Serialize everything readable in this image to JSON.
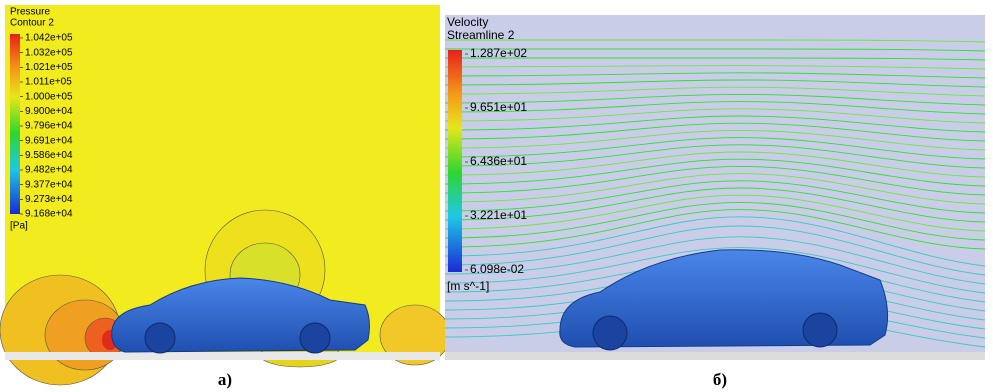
{
  "panels": [
    {
      "title": "Pressure",
      "subtitle": "Contour 2",
      "legend_labels": [
        "1.042e+05",
        "1.032e+05",
        "1.021e+05",
        "1.011e+05",
        "1.000e+05",
        "9.900e+04",
        "9.796e+04",
        "9.691e+04",
        "9.586e+04",
        "9.482e+04",
        "9.377e+04",
        "9.273e+04",
        "9.168e+04"
      ],
      "unit": "[Pa]",
      "caption": "а)"
    },
    {
      "title": "Velocity",
      "subtitle": "Streamline 2",
      "legend_labels": [
        "1.287e+02",
        "9.651e+01",
        "6.436e+01",
        "3.221e+01",
        "6.098e-02"
      ],
      "unit": "[m s^-1]",
      "caption": "б)"
    }
  ]
}
